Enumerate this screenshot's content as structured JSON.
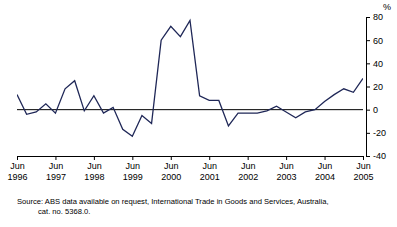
{
  "chart_data": {
    "type": "line",
    "categories": [
      "Jun 1996",
      null,
      null,
      null,
      "Jun 1997",
      null,
      null,
      null,
      "Jun 1998",
      null,
      null,
      null,
      "Jun 1999",
      null,
      null,
      null,
      "Jun 2000",
      null,
      null,
      null,
      "Jun 2001",
      null,
      null,
      null,
      "Jun 2002",
      null,
      null,
      null,
      "Jun 2003",
      null,
      null,
      null,
      "Jun 2004",
      null,
      null,
      null,
      "Jun 2005"
    ],
    "values": [
      13,
      -4,
      -2,
      5,
      -3,
      18,
      25,
      -1,
      12,
      -3,
      2,
      -17,
      -23,
      -5,
      -12,
      60,
      72,
      63,
      77,
      12,
      8,
      8,
      -14,
      -3,
      -3,
      -3,
      -1,
      3,
      -2,
      -7,
      -2,
      0,
      7,
      13,
      18,
      15,
      27
    ],
    "color": "#1f2757",
    "ylabel": "%",
    "ylim": [
      -40,
      80
    ],
    "yticks": [
      -40,
      -20,
      0,
      20,
      40,
      60,
      80
    ],
    "reference_line": 0,
    "grid": false,
    "source": [
      "Source: ABS data available on request, International Trade in Goods and Services, Australia,",
      "cat. no. 5368.0."
    ]
  }
}
